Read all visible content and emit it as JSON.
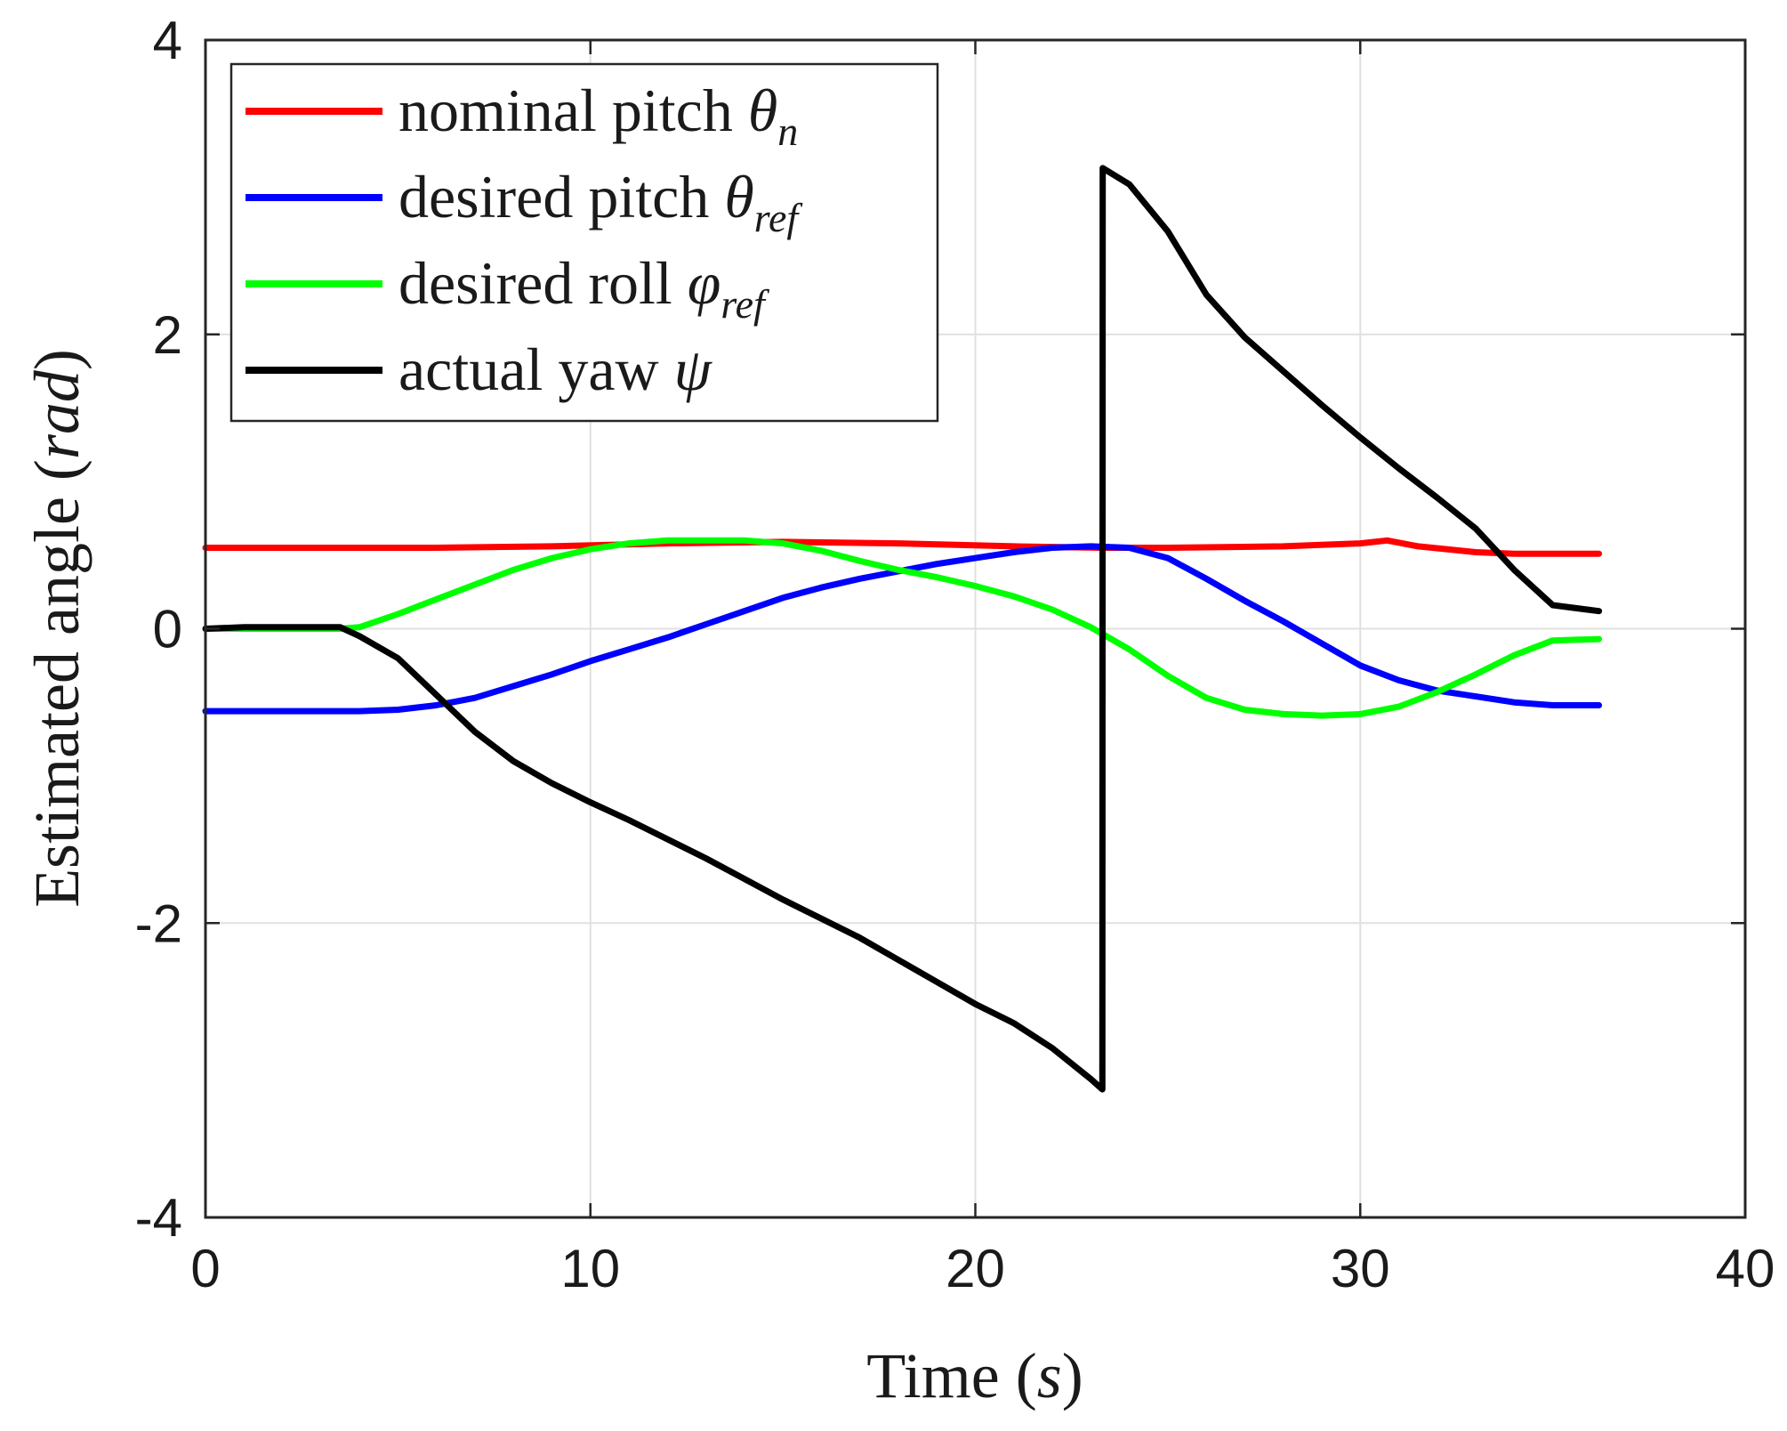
{
  "chart_data": {
    "type": "line",
    "title": "",
    "xlabel": {
      "text": "Time ",
      "unit": "s"
    },
    "ylabel": {
      "text": "Estimated angle ",
      "unit": "rad"
    },
    "xlim": [
      0,
      40
    ],
    "ylim": [
      -4,
      4
    ],
    "xticks": [
      0,
      10,
      20,
      30,
      40
    ],
    "xtick_labels": [
      "0",
      "10",
      "20",
      "30",
      "40"
    ],
    "yticks": [
      -4,
      -2,
      0,
      2,
      4
    ],
    "ytick_labels": [
      "-4",
      "-2",
      "0",
      "2",
      "4"
    ],
    "grid": true,
    "legend_position": "top-left",
    "series": [
      {
        "name": "nominal pitch θn",
        "legend": {
          "text": "nominal pitch ",
          "symbol": "θ",
          "subscript": "n"
        },
        "color": "#ff0000",
        "x": [
          0,
          3,
          6,
          9,
          12,
          15,
          18,
          21,
          23.3,
          25,
          28,
          30,
          30.7,
          31.5,
          33,
          34,
          35,
          36.2
        ],
        "y": [
          0.55,
          0.55,
          0.55,
          0.56,
          0.58,
          0.59,
          0.58,
          0.56,
          0.55,
          0.55,
          0.56,
          0.58,
          0.6,
          0.56,
          0.52,
          0.51,
          0.51,
          0.51
        ]
      },
      {
        "name": "desired pitch θref",
        "legend": {
          "text": "desired pitch ",
          "symbol": "θ",
          "subscript": "ref"
        },
        "color": "#0000ff",
        "x": [
          0,
          2,
          4,
          5,
          6,
          7,
          8,
          9,
          10,
          11,
          12,
          13,
          14,
          15,
          16,
          17,
          18,
          19,
          20,
          21,
          22,
          23,
          24,
          25,
          26,
          27,
          28,
          29,
          30,
          31,
          32,
          33,
          34,
          35,
          36.2
        ],
        "y": [
          -0.56,
          -0.56,
          -0.56,
          -0.55,
          -0.52,
          -0.47,
          -0.39,
          -0.31,
          -0.22,
          -0.14,
          -0.06,
          0.03,
          0.12,
          0.21,
          0.28,
          0.34,
          0.39,
          0.44,
          0.48,
          0.52,
          0.55,
          0.56,
          0.55,
          0.48,
          0.34,
          0.19,
          0.05,
          -0.1,
          -0.25,
          -0.35,
          -0.42,
          -0.46,
          -0.5,
          -0.52,
          -0.52
        ]
      },
      {
        "name": "desired roll φref",
        "legend": {
          "text": "desired roll ",
          "symbol": "φ",
          "subscript": "ref"
        },
        "color": "#00ff00",
        "x": [
          0,
          2,
          3.5,
          4,
          5,
          6,
          7,
          8,
          9,
          10,
          11,
          12,
          13,
          14,
          15,
          16,
          17,
          18,
          19,
          20,
          21,
          22,
          23,
          24,
          25,
          26,
          27,
          28,
          29,
          30,
          31,
          32,
          33,
          34,
          35,
          36.2
        ],
        "y": [
          0,
          0,
          0,
          0.01,
          0.1,
          0.2,
          0.3,
          0.4,
          0.48,
          0.54,
          0.58,
          0.6,
          0.6,
          0.6,
          0.58,
          0.53,
          0.46,
          0.4,
          0.35,
          0.29,
          0.22,
          0.13,
          0.01,
          -0.14,
          -0.32,
          -0.47,
          -0.55,
          -0.58,
          -0.59,
          -0.58,
          -0.53,
          -0.43,
          -0.31,
          -0.18,
          -0.08,
          -0.07
        ]
      },
      {
        "name": "actual yaw ψ",
        "legend": {
          "text": "actual yaw ",
          "symbol": "ψ",
          "subscript": ""
        },
        "color": "#000000",
        "x": [
          0,
          1,
          2,
          3,
          3.5,
          4,
          5,
          6,
          7,
          8,
          9,
          10,
          11,
          12,
          13,
          14,
          15,
          16,
          17,
          18,
          19,
          20,
          21,
          22,
          23,
          23.3,
          23.31,
          24,
          25,
          26,
          27,
          28,
          29,
          30,
          31,
          32,
          33,
          34,
          35,
          36.2
        ],
        "y": [
          0,
          0.01,
          0.01,
          0.01,
          0.01,
          -0.05,
          -0.2,
          -0.45,
          -0.7,
          -0.9,
          -1.05,
          -1.18,
          -1.3,
          -1.43,
          -1.56,
          -1.7,
          -1.84,
          -1.97,
          -2.1,
          -2.25,
          -2.4,
          -2.55,
          -2.68,
          -2.85,
          -3.06,
          -3.13,
          3.13,
          3.02,
          2.7,
          2.27,
          1.98,
          1.75,
          1.52,
          1.3,
          1.09,
          0.89,
          0.68,
          0.4,
          0.16,
          0.12
        ]
      }
    ]
  }
}
